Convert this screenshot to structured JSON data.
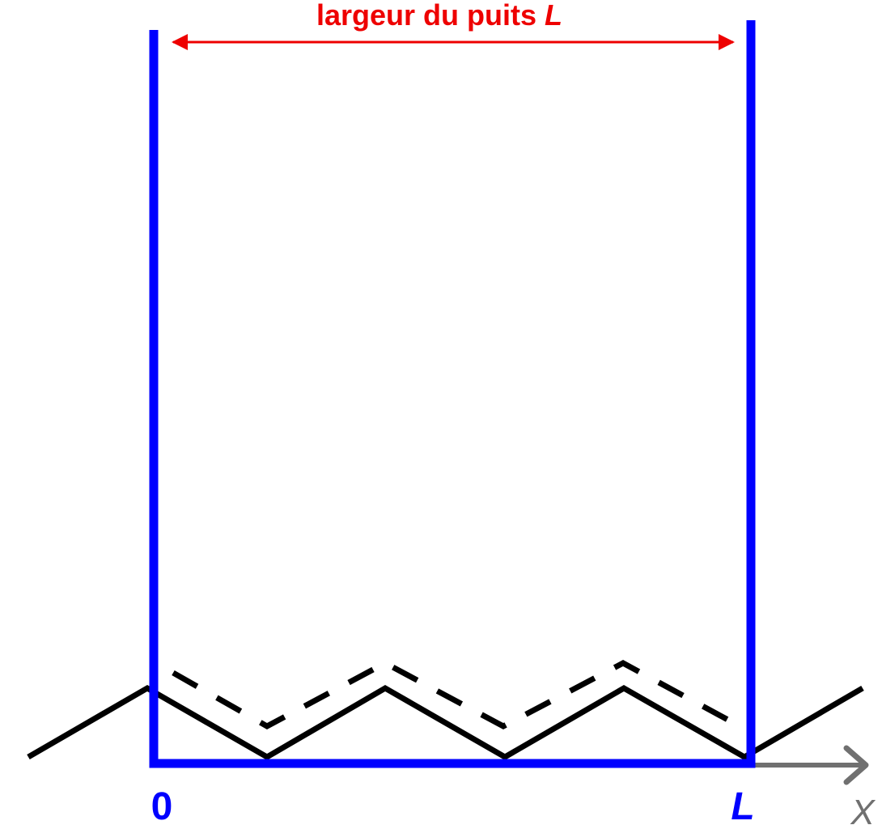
{
  "width_label": {
    "text": "largeur du puits ",
    "variable": "L"
  },
  "origin_label": "0",
  "end_label": "L",
  "axis_label": "X",
  "colors": {
    "well": "#0000ff",
    "dimension": "#ee0000",
    "wave": "#000000",
    "axis": "#707070"
  }
}
